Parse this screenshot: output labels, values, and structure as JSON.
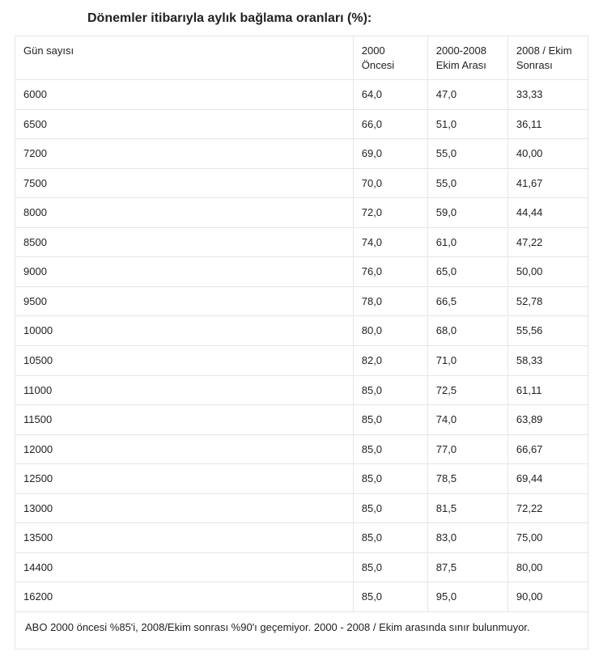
{
  "title": "Dönemler itibarıyla aylık bağlama oranları (%):",
  "table": {
    "type": "table",
    "background_color": "#ffffff",
    "border_color": "#e6e6e6",
    "text_color": "#222222",
    "font_size_pt": 10,
    "title_font_size_pt": 11,
    "title_font_weight": 700,
    "column_widths_pct": [
      59,
      13,
      14,
      14
    ],
    "columns": [
      "Gün sayısı",
      "2000 Öncesi",
      "2000-2008 Ekim Arası",
      "2008 / Ekim Sonrası"
    ],
    "rows": [
      [
        "6000",
        "64,0",
        "47,0",
        "33,33"
      ],
      [
        "6500",
        "66,0",
        "51,0",
        "36,11"
      ],
      [
        "7200",
        "69,0",
        "55,0",
        "40,00"
      ],
      [
        "7500",
        "70,0",
        "55,0",
        "41,67"
      ],
      [
        "8000",
        "72,0",
        "59,0",
        "44,44"
      ],
      [
        "8500",
        "74,0",
        "61,0",
        "47,22"
      ],
      [
        "9000",
        "76,0",
        "65,0",
        "50,00"
      ],
      [
        "9500",
        "78,0",
        "66,5",
        "52,78"
      ],
      [
        "10000",
        "80,0",
        "68,0",
        "55,56"
      ],
      [
        "10500",
        "82,0",
        "71,0",
        "58,33"
      ],
      [
        "11000",
        "85,0",
        "72,5",
        "61,11"
      ],
      [
        "11500",
        "85,0",
        "74,0",
        "63,89"
      ],
      [
        "12000",
        "85,0",
        "77,0",
        "66,67"
      ],
      [
        "12500",
        "85,0",
        "78,5",
        "69,44"
      ],
      [
        "13000",
        "85,0",
        "81,5",
        "72,22"
      ],
      [
        "13500",
        "85,0",
        "83,0",
        "75,00"
      ],
      [
        "14400",
        "85,0",
        "87,5",
        "80,00"
      ],
      [
        "16200",
        "85,0",
        "95,0",
        "90,00"
      ]
    ],
    "footnote": "ABO 2000 öncesi %85'i, 2008/Ekim sonrası %90'ı geçemiyor. 2000 - 2008 / Ekim arasında sınır bulunmuyor."
  }
}
